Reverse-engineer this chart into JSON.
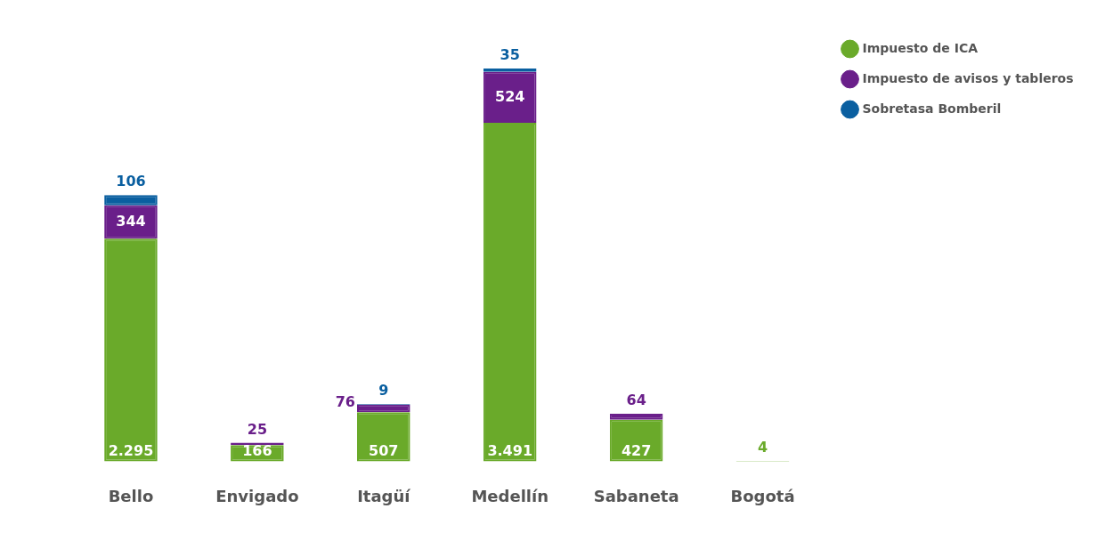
{
  "chart_data": {
    "type": "bar",
    "stacked": true,
    "categories": [
      "Bello",
      "Envigado",
      "Itagüí",
      "Medellín",
      "Sabaneta",
      "Bogotá"
    ],
    "series": [
      {
        "name": "Impuesto de ICA",
        "color": "#6aaa2a",
        "values": [
          2295,
          166,
          507,
          3491,
          427,
          4
        ],
        "value_labels": [
          "2.295",
          "166",
          "507",
          "3.491",
          "427",
          "4"
        ]
      },
      {
        "name": "Impuesto de avisos y tableros",
        "color": "#6a1f8a",
        "values": [
          344,
          25,
          76,
          524,
          64,
          null
        ],
        "value_labels": [
          "344",
          "25",
          "76",
          "524",
          "64",
          null
        ]
      },
      {
        "name": "Sobretasa Bomberil",
        "color": "#0a5fa0",
        "values": [
          106,
          null,
          9,
          35,
          null,
          null
        ],
        "value_labels": [
          "106",
          null,
          "9",
          "35",
          null,
          null
        ]
      }
    ],
    "legend": "top right",
    "grid": false
  }
}
